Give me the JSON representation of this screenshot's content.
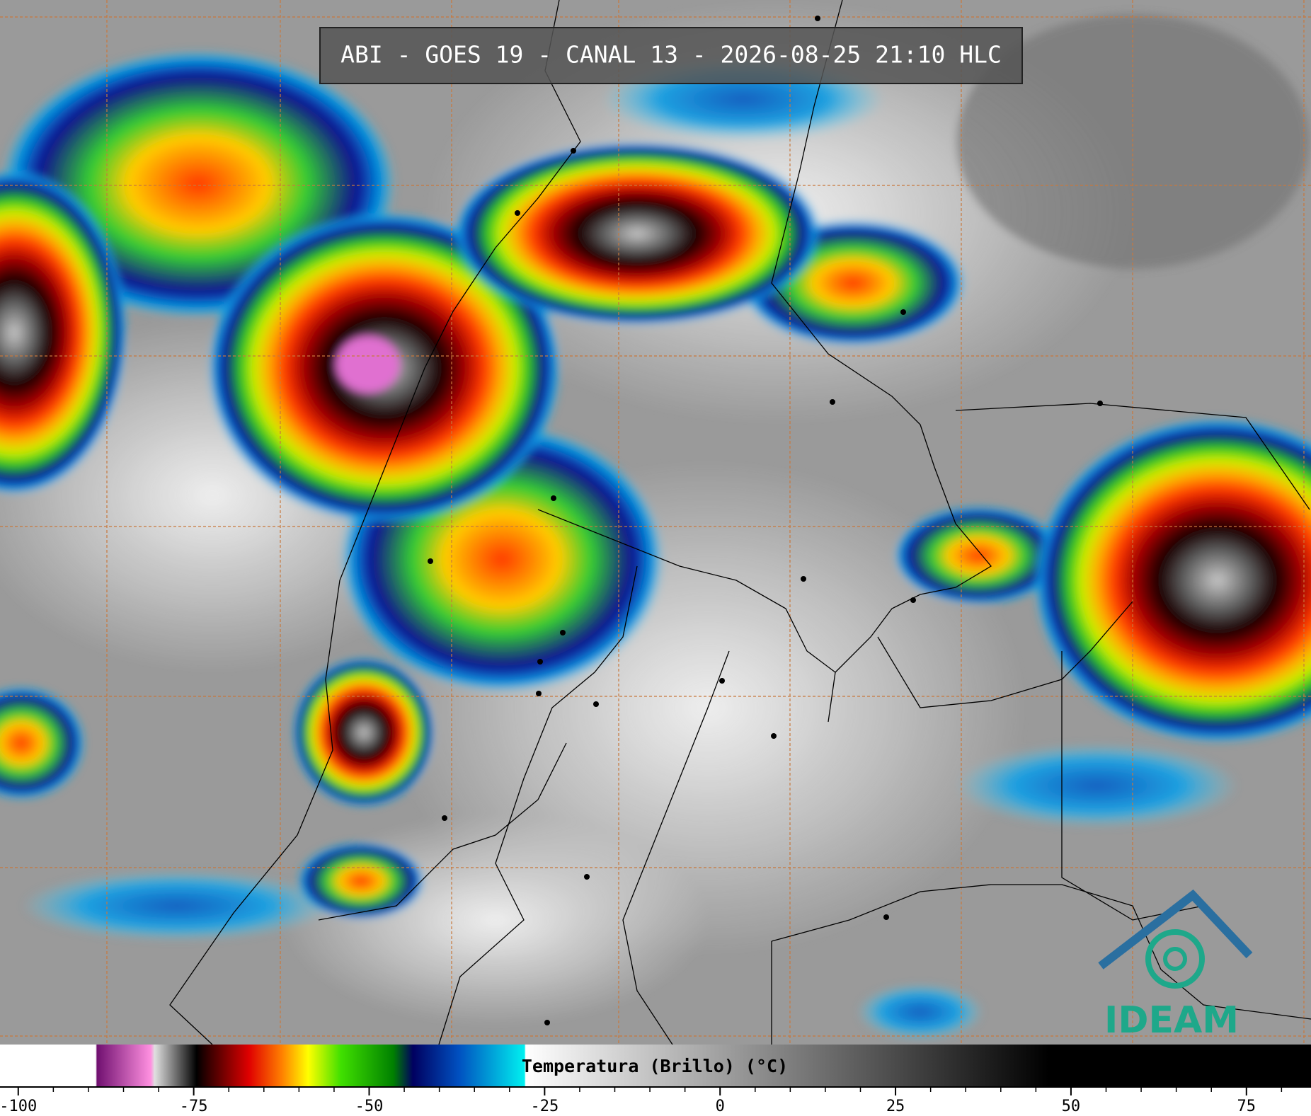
{
  "title": "ABI - GOES 19 - CANAL 13 - 2026-08-25 21:10 HLC",
  "logo": "IDEAM",
  "colorbar": {
    "label": "Temperatura (Brillo) (°C)",
    "xlim": [
      -102.6,
      84.2
    ],
    "xticks": [
      -100,
      -75,
      -50,
      -25,
      0,
      25,
      50,
      75
    ],
    "minor_ticks": [
      -95,
      -90,
      -85,
      -80,
      -70,
      -65,
      -60,
      -55,
      -45,
      -40,
      -35,
      -30,
      -20,
      -15,
      -10,
      -5,
      5,
      10,
      15,
      20,
      30,
      35,
      40,
      45,
      55,
      60,
      65,
      70,
      80
    ]
  }
}
